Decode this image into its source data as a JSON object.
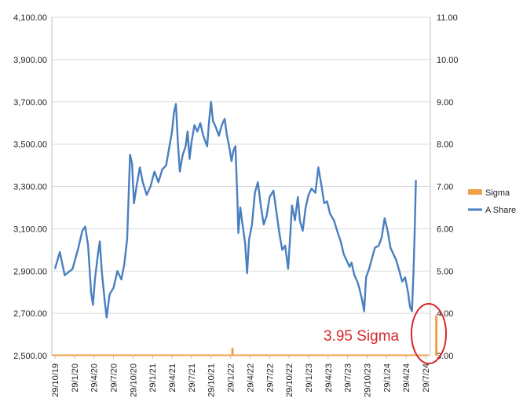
{
  "chart_data": {
    "type": "line",
    "title": "",
    "xlabel": "",
    "ylabel": "",
    "y_left": {
      "min": 2500,
      "max": 4100,
      "ticks": [
        "2,500.00",
        "2,700.00",
        "2,900.00",
        "3,100.00",
        "3,300.00",
        "3,500.00",
        "3,700.00",
        "3,900.00",
        "4,100.00"
      ]
    },
    "y_right": {
      "min": 3,
      "max": 11,
      "ticks": [
        "3.00",
        "4.00",
        "5.00",
        "6.00",
        "7.00",
        "8.00",
        "9.00",
        "10.00",
        "11.00"
      ]
    },
    "x_ticks": [
      "29/10/19",
      "29/1/20",
      "29/4/20",
      "29/7/20",
      "29/10/20",
      "29/1/21",
      "29/4/21",
      "29/7/21",
      "29/10/21",
      "29/1/22",
      "29/4/22",
      "29/7/22",
      "29/10/22",
      "29/1/23",
      "29/4/23",
      "29/7/23",
      "29/10/23",
      "29/1/24",
      "29/4/24",
      "29/7/24"
    ],
    "grid": "horizontal",
    "legend_position": "right",
    "series": [
      {
        "name": "Sigma",
        "type": "bar",
        "axis": "right",
        "color": "#f0a04a",
        "points": [
          [
            0,
            3.02
          ],
          [
            9.1,
            3.18
          ],
          [
            19.55,
            3.95
          ]
        ]
      },
      {
        "name": "A Share",
        "type": "line",
        "axis": "left",
        "color": "#4a7fbf",
        "points": [
          [
            0,
            2910
          ],
          [
            0.25,
            2990
          ],
          [
            0.5,
            2880
          ],
          [
            0.9,
            2910
          ],
          [
            1.2,
            3010
          ],
          [
            1.4,
            3090
          ],
          [
            1.55,
            3110
          ],
          [
            1.7,
            3020
          ],
          [
            1.85,
            2800
          ],
          [
            1.95,
            2740
          ],
          [
            2.05,
            2860
          ],
          [
            2.2,
            2980
          ],
          [
            2.3,
            3040
          ],
          [
            2.4,
            2900
          ],
          [
            2.55,
            2760
          ],
          [
            2.65,
            2680
          ],
          [
            2.8,
            2790
          ],
          [
            3.0,
            2820
          ],
          [
            3.2,
            2900
          ],
          [
            3.4,
            2860
          ],
          [
            3.55,
            2930
          ],
          [
            3.7,
            3050
          ],
          [
            3.85,
            3450
          ],
          [
            3.95,
            3410
          ],
          [
            4.05,
            3220
          ],
          [
            4.2,
            3310
          ],
          [
            4.35,
            3390
          ],
          [
            4.5,
            3320
          ],
          [
            4.7,
            3260
          ],
          [
            4.9,
            3300
          ],
          [
            5.1,
            3370
          ],
          [
            5.3,
            3320
          ],
          [
            5.5,
            3380
          ],
          [
            5.7,
            3400
          ],
          [
            5.85,
            3480
          ],
          [
            6.0,
            3560
          ],
          [
            6.1,
            3650
          ],
          [
            6.2,
            3690
          ],
          [
            6.3,
            3510
          ],
          [
            6.4,
            3370
          ],
          [
            6.55,
            3450
          ],
          [
            6.7,
            3490
          ],
          [
            6.8,
            3560
          ],
          [
            6.9,
            3430
          ],
          [
            7.0,
            3510
          ],
          [
            7.15,
            3590
          ],
          [
            7.3,
            3560
          ],
          [
            7.45,
            3600
          ],
          [
            7.6,
            3540
          ],
          [
            7.8,
            3490
          ],
          [
            7.9,
            3610
          ],
          [
            8.0,
            3700
          ],
          [
            8.1,
            3610
          ],
          [
            8.25,
            3580
          ],
          [
            8.4,
            3540
          ],
          [
            8.55,
            3590
          ],
          [
            8.7,
            3620
          ],
          [
            8.8,
            3550
          ],
          [
            8.95,
            3480
          ],
          [
            9.05,
            3420
          ],
          [
            9.15,
            3470
          ],
          [
            9.25,
            3490
          ],
          [
            9.35,
            3240
          ],
          [
            9.4,
            3080
          ],
          [
            9.5,
            3200
          ],
          [
            9.6,
            3130
          ],
          [
            9.75,
            3030
          ],
          [
            9.85,
            2890
          ],
          [
            9.95,
            3050
          ],
          [
            10.1,
            3120
          ],
          [
            10.25,
            3270
          ],
          [
            10.4,
            3320
          ],
          [
            10.55,
            3210
          ],
          [
            10.7,
            3120
          ],
          [
            10.85,
            3160
          ],
          [
            11.0,
            3250
          ],
          [
            11.2,
            3280
          ],
          [
            11.35,
            3180
          ],
          [
            11.5,
            3080
          ],
          [
            11.65,
            3000
          ],
          [
            11.8,
            3020
          ],
          [
            11.95,
            2910
          ],
          [
            12.05,
            3050
          ],
          [
            12.15,
            3210
          ],
          [
            12.3,
            3140
          ],
          [
            12.45,
            3250
          ],
          [
            12.55,
            3140
          ],
          [
            12.7,
            3090
          ],
          [
            12.85,
            3200
          ],
          [
            13.0,
            3260
          ],
          [
            13.15,
            3290
          ],
          [
            13.35,
            3270
          ],
          [
            13.5,
            3390
          ],
          [
            13.65,
            3310
          ],
          [
            13.8,
            3220
          ],
          [
            13.95,
            3230
          ],
          [
            14.1,
            3170
          ],
          [
            14.3,
            3140
          ],
          [
            14.5,
            3080
          ],
          [
            14.65,
            3040
          ],
          [
            14.8,
            2980
          ],
          [
            14.95,
            2950
          ],
          [
            15.1,
            2920
          ],
          [
            15.2,
            2940
          ],
          [
            15.35,
            2880
          ],
          [
            15.5,
            2850
          ],
          [
            15.6,
            2820
          ],
          [
            15.75,
            2760
          ],
          [
            15.85,
            2710
          ],
          [
            15.95,
            2870
          ],
          [
            16.1,
            2910
          ],
          [
            16.25,
            2960
          ],
          [
            16.4,
            3010
          ],
          [
            16.6,
            3020
          ],
          [
            16.75,
            3060
          ],
          [
            16.9,
            3150
          ],
          [
            17.05,
            3090
          ],
          [
            17.2,
            3010
          ],
          [
            17.35,
            2980
          ],
          [
            17.5,
            2950
          ],
          [
            17.65,
            2900
          ],
          [
            17.8,
            2850
          ],
          [
            17.95,
            2870
          ],
          [
            18.1,
            2800
          ],
          [
            18.2,
            2730
          ],
          [
            18.3,
            2710
          ],
          [
            18.38,
            2900
          ],
          [
            18.45,
            3120
          ],
          [
            18.5,
            3330
          ]
        ]
      }
    ],
    "annotations": [
      {
        "text": "3.95 Sigma",
        "color": "#d8282a",
        "points_to": [
          18.5,
          2595
        ]
      }
    ]
  }
}
